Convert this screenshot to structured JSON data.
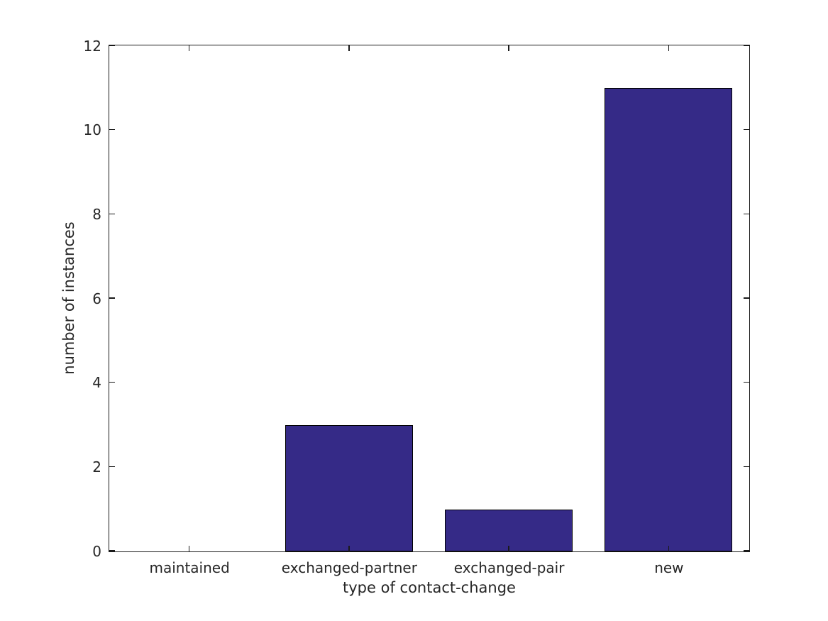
{
  "chart_data": {
    "type": "bar",
    "title": "",
    "xlabel": "type of contact-change",
    "ylabel": "number of instances",
    "categories": [
      "maintained",
      "exchanged-partner",
      "exchanged-pair",
      "new"
    ],
    "values": [
      0,
      3,
      1,
      11
    ],
    "ylim": [
      0,
      12
    ],
    "yticks": [
      0,
      2,
      4,
      6,
      8,
      10,
      12
    ],
    "ytick_labels": [
      "0",
      "2",
      "4",
      "6",
      "8",
      "10",
      "12"
    ],
    "bar_color": "#352A87",
    "bar_edge_color": "#000000",
    "bar_width_fraction": 0.8,
    "axis_color": "#1a1a1a",
    "text_color": "#262626",
    "background_color": "#ffffff",
    "grid": false,
    "legend_position": "none",
    "tick_direction": "in",
    "box": true
  }
}
